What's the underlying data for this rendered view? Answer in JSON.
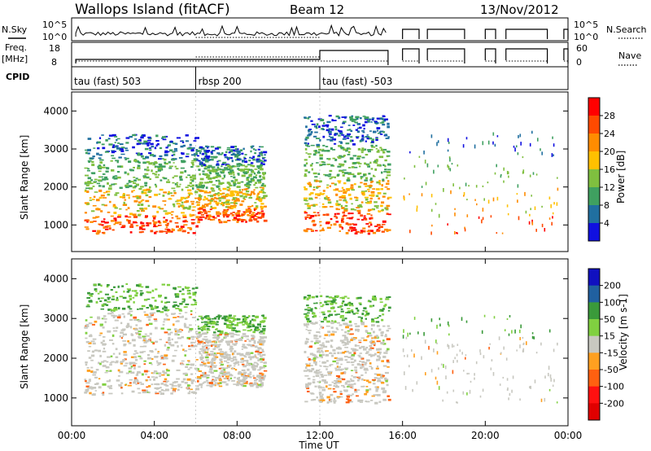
{
  "header": {
    "station": "Wallops Island (fitACF)",
    "beam": "Beam 12",
    "date": "13/Nov/2012"
  },
  "strips": {
    "nsky_label": "N.Sky",
    "nsky_ticks": [
      "10^5",
      "10^0"
    ],
    "nsearch_label": "N.Search",
    "freq_label_1": "Freq.",
    "freq_label_2": "[MHz]",
    "freq_ticks": [
      "18",
      "8"
    ],
    "nave_label": "Nave",
    "nave_ticks": [
      "60",
      "0"
    ],
    "cpid_label": "CPID"
  },
  "cpid": [
    {
      "label": "tau (fast) 503",
      "start": "00:00",
      "end": "06:00"
    },
    {
      "label": "rbsp 200",
      "start": "06:00",
      "end": "12:00"
    },
    {
      "label": "tau (fast) -503",
      "start": "12:00",
      "end": "24:00"
    }
  ],
  "axes": {
    "xlabel": "Time UT",
    "xticks": [
      "00:00",
      "04:00",
      "08:00",
      "12:00",
      "16:00",
      "20:00",
      "00:00"
    ],
    "ylabel": "Slant Range [km]",
    "yticks": [
      "1000",
      "2000",
      "3000",
      "4000"
    ],
    "ylim": [
      300,
      4500
    ]
  },
  "power_colorbar": {
    "label": "Power [dB]",
    "ticks": [
      "28",
      "24",
      "20",
      "16",
      "12",
      "8",
      "4"
    ],
    "colors": [
      "#ff0000",
      "#ff4a00",
      "#ff8c00",
      "#ffc000",
      "#7fbf3f",
      "#3fa060",
      "#206fa0",
      "#1010e0"
    ]
  },
  "velocity_colorbar": {
    "label": "Velocity [m s-1]",
    "ticks": [
      "200",
      "100",
      "50",
      "15",
      "-15",
      "-50",
      "-100",
      "-200"
    ],
    "colors": [
      "#1010c0",
      "#2060a0",
      "#3a9a3a",
      "#80d040",
      "#c8c8c0",
      "#ffa020",
      "#ff6010",
      "#ff1010",
      "#e00000"
    ]
  },
  "chart_data": [
    {
      "type": "heatmap",
      "panel": "power",
      "xlabel": "Time UT",
      "ylabel": "Slant Range [km]",
      "ylim": [
        300,
        4500
      ],
      "x_range_hours": [
        0,
        24
      ],
      "regions": [
        {
          "t_start": 0.6,
          "t_end": 6.0,
          "range_low": 800,
          "range_high": 3400
        },
        {
          "t_start": 6.0,
          "t_end": 9.3,
          "range_low": 1100,
          "range_high": 3100
        },
        {
          "t_start": 11.2,
          "t_end": 15.3,
          "range_low": 800,
          "range_high": 3900
        },
        {
          "t_start": 16.0,
          "t_end": 23.5,
          "range_low": 800,
          "range_high": 3500
        }
      ]
    },
    {
      "type": "heatmap",
      "panel": "velocity",
      "xlabel": "Time UT",
      "ylabel": "Slant Range [km]",
      "ylim": [
        300,
        4500
      ],
      "x_range_hours": [
        0,
        24
      ],
      "regions": [
        {
          "t_start": 0.6,
          "t_end": 6.0,
          "range_low": 1100,
          "range_high": 3900
        },
        {
          "t_start": 6.0,
          "t_end": 9.3,
          "range_low": 1300,
          "range_high": 3100
        },
        {
          "t_start": 11.2,
          "t_end": 15.3,
          "range_low": 900,
          "range_high": 3600
        },
        {
          "t_start": 16.0,
          "t_end": 23.5,
          "range_low": 900,
          "range_high": 3100
        }
      ]
    }
  ]
}
